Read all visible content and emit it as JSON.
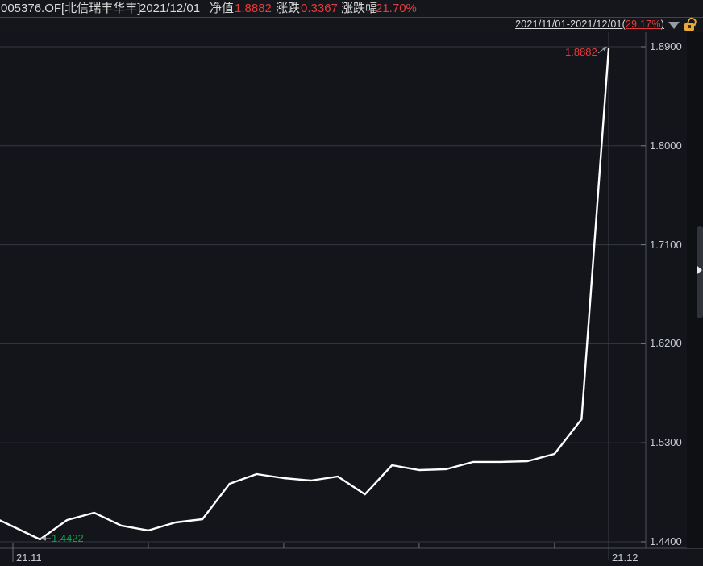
{
  "header": {
    "fund_code": "005376.OF[北信瑞丰华丰]",
    "date": "2021/12/01",
    "nav_label": "净值",
    "nav_value": "1.8882",
    "change_label": "涨跌",
    "change_value": "0.3367",
    "change_pct_label": "涨跌幅",
    "change_pct_value": "21.70%"
  },
  "range_bar": {
    "range_prefix": "2021/11/01-2021/12/01(",
    "range_return": "29.17%",
    "range_suffix": ")",
    "dropdown_icon": "triangle-down-icon",
    "lock_icon": "unlocked-padlock-icon"
  },
  "colors": {
    "background": "#13151a",
    "up_red": "#e23b3b",
    "down_green": "#00a843",
    "line_white": "#ffffff",
    "grid_gray": "#353841",
    "axis_gray": "#4d515a",
    "label_gray": "#c6cbd2",
    "lock_orange": "#e8a93c"
  },
  "chart_data": {
    "type": "line",
    "title": "",
    "xlabel": "",
    "ylabel": "",
    "x": [
      "2021-11-01",
      "2021-11-02",
      "2021-11-03",
      "2021-11-04",
      "2021-11-05",
      "2021-11-08",
      "2021-11-09",
      "2021-11-10",
      "2021-11-11",
      "2021-11-12",
      "2021-11-15",
      "2021-11-16",
      "2021-11-17",
      "2021-11-18",
      "2021-11-19",
      "2021-11-22",
      "2021-11-23",
      "2021-11-24",
      "2021-11-25",
      "2021-11-26",
      "2021-11-29",
      "2021-11-30",
      "2021-12-01"
    ],
    "series": [
      {
        "name": "净值",
        "values": [
          1.4539,
          1.4422,
          1.4598,
          1.4664,
          1.4547,
          1.4503,
          1.4576,
          1.4605,
          1.4928,
          1.5016,
          1.4979,
          1.4957,
          1.4994,
          1.4832,
          1.5096,
          1.5052,
          1.506,
          1.5126,
          1.5126,
          1.5133,
          1.5199,
          1.5515,
          1.8882
        ]
      }
    ],
    "ylim": [
      1.44,
      1.89
    ],
    "yticks": [
      "1.8900",
      "1.8000",
      "1.7100",
      "1.6200",
      "1.5300",
      "1.4400"
    ],
    "ytick_values": [
      1.89,
      1.8,
      1.71,
      1.62,
      1.53,
      1.44
    ],
    "xticks": [
      "21.11",
      "21.12"
    ],
    "minor_xtick_indices": [
      0,
      5,
      10,
      15,
      20
    ],
    "grid": true,
    "legend": "none",
    "line_color": "#ffffff",
    "annotations": [
      {
        "text": "1.8882",
        "color": "#e23b3b",
        "point_index": 22,
        "arrow": "right"
      },
      {
        "text": "1.4422",
        "color": "#00a843",
        "point_index": 1,
        "arrow": "left"
      }
    ]
  }
}
